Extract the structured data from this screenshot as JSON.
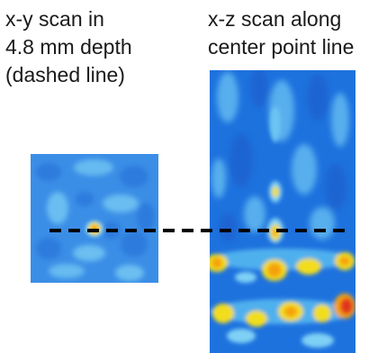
{
  "captions": {
    "xy_scan": [
      "x-y scan in",
      "4.8 mm depth",
      "(dashed line)"
    ],
    "xz_scan": [
      "x-z scan along",
      "center point line"
    ]
  },
  "colors": {
    "background": "#ffffff",
    "scan_base_light": "#3d8fe6",
    "scan_base_dark": "#1e72de",
    "scan_light": "#7fd0f5",
    "hot_yellow": "#f2dd1c",
    "hot_orange": "#f5a10f",
    "hot_red": "#e0361a",
    "dashed_line": "#000000"
  },
  "icons": {
    "xy_scan_image": "heatmap-image",
    "xz_scan_image": "heatmap-image"
  }
}
